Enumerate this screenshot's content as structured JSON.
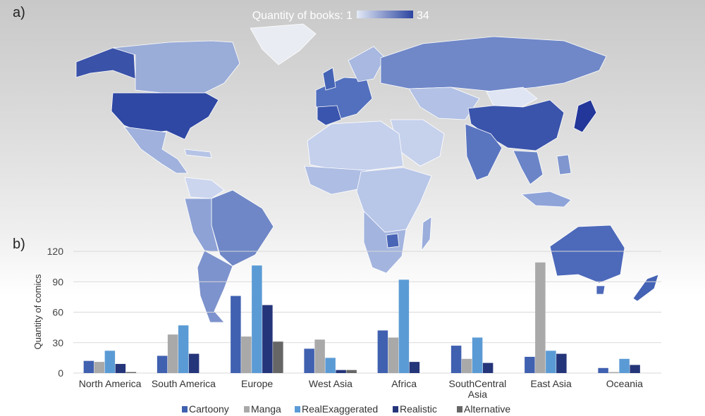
{
  "panels": {
    "a": "a)",
    "b": "b)"
  },
  "map": {
    "scale_title": "Quantity of books: 1",
    "scale_max": "34",
    "color_low": "#e4eaf6",
    "color_high": "#2c45a0"
  },
  "chart_data": {
    "type": "bar",
    "ylabel": "Quantity of comics",
    "xlabel": "",
    "ylim": [
      0,
      120
    ],
    "yticks": [
      "0",
      "30",
      "60",
      "90",
      "120"
    ],
    "grid": true,
    "legend_position": "bottom",
    "categories": [
      "North America",
      "South America",
      "Europe",
      "West Asia",
      "Africa",
      "SouthCentral Asia",
      "East Asia",
      "Oceania"
    ],
    "category_lines": [
      [
        "North America"
      ],
      [
        "South America"
      ],
      [
        "Europe"
      ],
      [
        "West Asia"
      ],
      [
        "Africa"
      ],
      [
        "SouthCentral",
        "Asia"
      ],
      [
        "East Asia"
      ],
      [
        "Oceania"
      ]
    ],
    "series": [
      {
        "name": "Cartoony",
        "color": "#4060b0",
        "values": [
          12,
          17,
          76,
          24,
          42,
          27,
          16,
          5
        ]
      },
      {
        "name": "Manga",
        "color": "#a9a9a9",
        "values": [
          11,
          38,
          36,
          33,
          35,
          14,
          109,
          1
        ]
      },
      {
        "name": "RealExaggerated",
        "color": "#5b9bd5",
        "values": [
          22,
          47,
          106,
          15,
          92,
          35,
          22,
          14
        ]
      },
      {
        "name": "Realistic",
        "color": "#25357a",
        "values": [
          9,
          19,
          67,
          3,
          11,
          10,
          19,
          8
        ]
      },
      {
        "name": "Alternative",
        "color": "#666666",
        "values": [
          1,
          0,
          31,
          3,
          0,
          0,
          0,
          0
        ]
      }
    ]
  }
}
